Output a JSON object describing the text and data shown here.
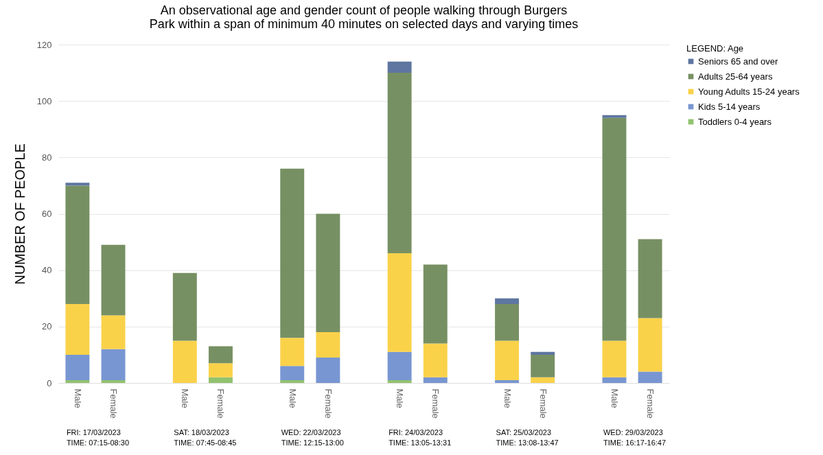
{
  "chart_data": {
    "type": "bar",
    "title": "An observational age and gender count of people walking through Burgers Park within a span of minimum 40 minutes on selected days and varying times",
    "ylabel": "NUMBER OF PEOPLE",
    "legend_title": "LEGEND: Age",
    "legend": "right",
    "stacked": true,
    "grid": "y",
    "ylim": [
      0,
      120
    ],
    "yticks": [
      0,
      20,
      40,
      60,
      80,
      100,
      120
    ],
    "categories": [
      "Male",
      "Female",
      "Male",
      "Female",
      "Male",
      "Female",
      "Male",
      "Female",
      "Male",
      "Female",
      "Male",
      "Female"
    ],
    "annotations": [
      "FRI: 17/03/2023\nTIME: 07:15-08:30",
      "SAT: 18/03/2023\nTIME: 07:45-08:45",
      "WED: 22/03/2023\nTIME: 12:15-13:00",
      "FRI: 24/03/2023\nTIME: 13:05-13:31",
      "SAT: 25/03/2023\nTIME: 13:08-13:47",
      "WED: 29/03/2023\nTIME: 16:17-16:47"
    ],
    "series": [
      {
        "name": "Toddlers 0-4 years",
        "color": "#92c26f",
        "values": [
          1,
          1,
          0,
          2,
          1,
          0,
          1,
          0,
          0,
          0,
          0,
          0
        ]
      },
      {
        "name": "Kids 5-14 years",
        "color": "#7896d2",
        "values": [
          9,
          11,
          0,
          0,
          5,
          9,
          10,
          2,
          1,
          0,
          2,
          4
        ]
      },
      {
        "name": "Young Adults 15-24 years",
        "color": "#fad24a",
        "values": [
          18,
          12,
          15,
          5,
          10,
          9,
          35,
          12,
          14,
          2,
          13,
          19
        ]
      },
      {
        "name": "Adults 25-64 years",
        "color": "#779063",
        "values": [
          42,
          25,
          24,
          6,
          60,
          42,
          64,
          28,
          13,
          8,
          79,
          28
        ]
      },
      {
        "name": "Seniors 65 and over",
        "color": "#5e76a0",
        "values": [
          1,
          0,
          0,
          0,
          0,
          0,
          4,
          0,
          2,
          1,
          1,
          0
        ]
      }
    ]
  }
}
